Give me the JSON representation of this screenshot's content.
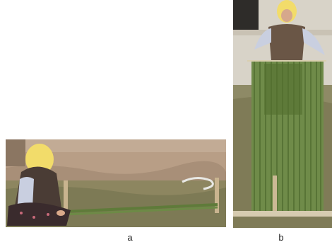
{
  "figure": {
    "panels": [
      {
        "caption": "a"
      },
      {
        "caption": "b"
      }
    ]
  }
}
